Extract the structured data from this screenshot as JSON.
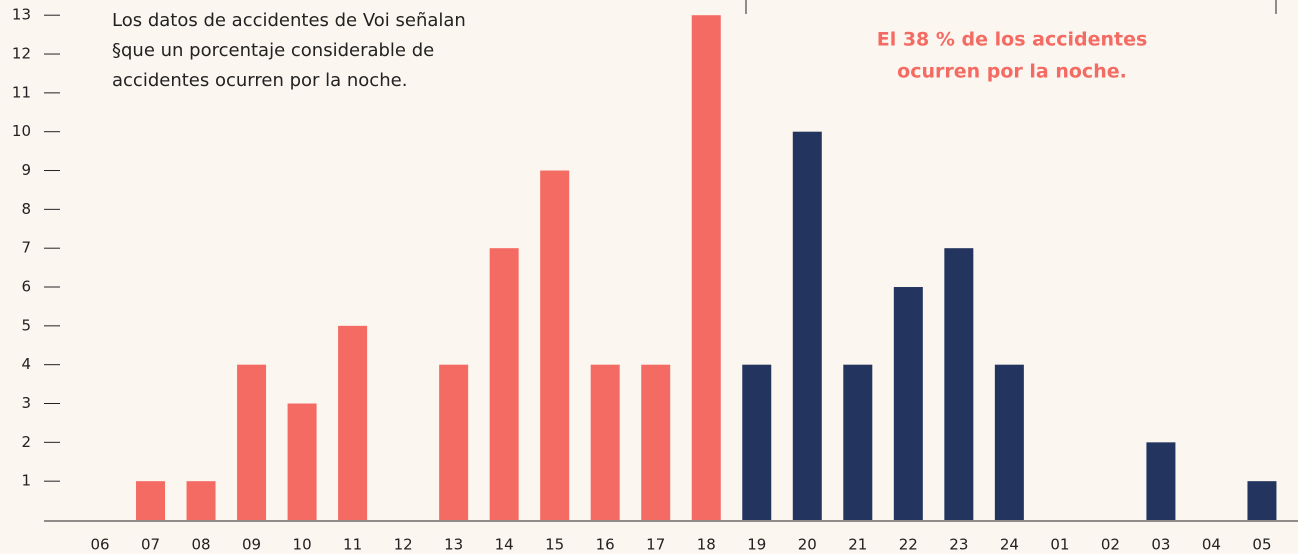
{
  "chart_data": {
    "type": "bar",
    "subtitle": [
      "Los datos de accidentes de Voi señalan",
      "§que un porcentaje considerable de",
      "accidentes ocurren por la noche."
    ],
    "annotation": [
      "El 38 % de los accidentes",
      "ocurren por la noche."
    ],
    "categories": [
      "06",
      "07",
      "08",
      "09",
      "10",
      "11",
      "12",
      "13",
      "14",
      "15",
      "16",
      "17",
      "18",
      "19",
      "20",
      "21",
      "22",
      "23",
      "24",
      "01",
      "02",
      "03",
      "04",
      "05"
    ],
    "values": [
      0,
      1,
      1,
      4,
      3,
      5,
      0,
      4,
      7,
      9,
      4,
      4,
      13,
      4,
      10,
      4,
      6,
      7,
      4,
      0,
      0,
      2,
      0,
      1
    ],
    "colors": [
      "#f46b63",
      "#f46b63",
      "#f46b63",
      "#f46b63",
      "#f46b63",
      "#f46b63",
      "#f46b63",
      "#f46b63",
      "#f46b63",
      "#f46b63",
      "#f46b63",
      "#f46b63",
      "#f46b63",
      "#23355e",
      "#23355e",
      "#23355e",
      "#23355e",
      "#23355e",
      "#23355e",
      "#23355e",
      "#23355e",
      "#23355e",
      "#23355e",
      "#23355e"
    ],
    "annotation_color": "#f46b63",
    "ylim": [
      0,
      13
    ],
    "yticks": [
      1,
      2,
      3,
      4,
      5,
      6,
      7,
      8,
      9,
      10,
      11,
      12,
      13
    ]
  }
}
